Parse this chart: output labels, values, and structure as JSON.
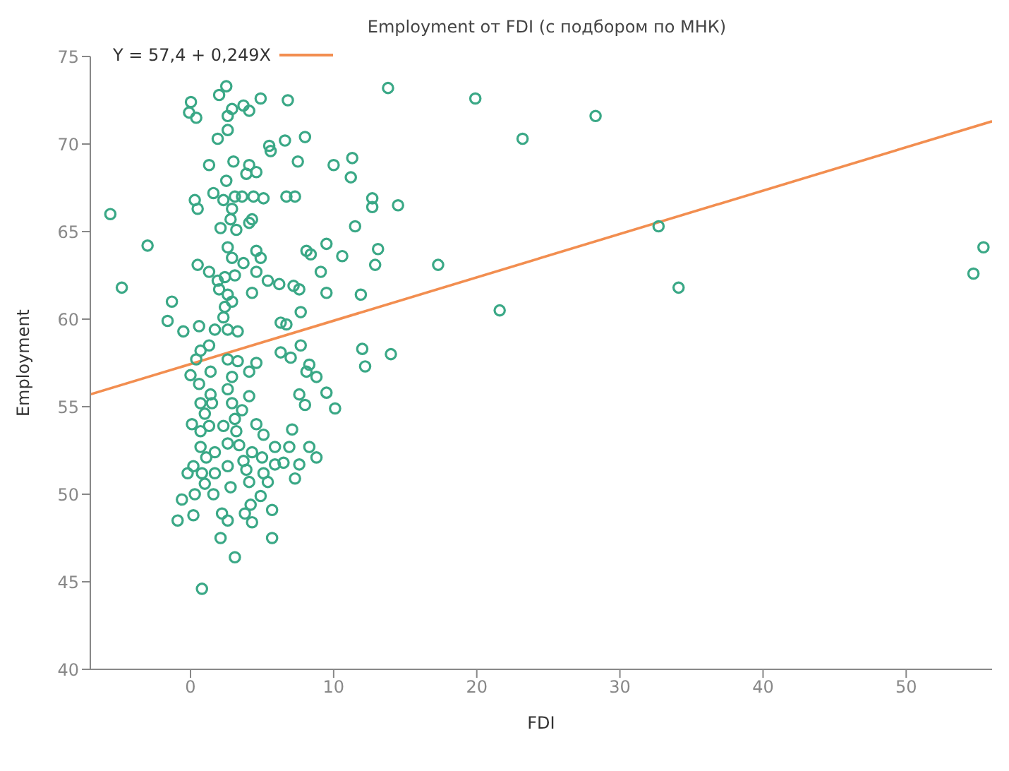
{
  "chart_data": {
    "type": "scatter",
    "title": "Employment от FDI (с подбором по МНК)",
    "xlabel": "FDI",
    "ylabel": "Employment",
    "xlim": [
      -7,
      56
    ],
    "xticks": [
      0,
      10,
      20,
      30,
      40,
      50
    ],
    "ylim": [
      40,
      75
    ],
    "yticks": [
      40,
      45,
      50,
      55,
      60,
      65,
      70,
      75
    ],
    "grid": false,
    "legend": "top left",
    "marker": "circle",
    "series": [
      {
        "color": "#3aa886",
        "x": [
          -5.6,
          -3.0,
          -4.8,
          -1.3,
          -1.6,
          -0.5,
          0.03,
          -0.1,
          0.4,
          2.0,
          2.5,
          2.6,
          2.9,
          3.7,
          4.1,
          4.9,
          6.8,
          2.6,
          1.9,
          5.5,
          5.6,
          6.6,
          8.0,
          1.3,
          3.0,
          4.1,
          3.9,
          4.6,
          7.5,
          10.0,
          11.3,
          11.2,
          2.5,
          1.6,
          0.3,
          0.5,
          2.3,
          3.1,
          3.6,
          4.4,
          5.1,
          6.7,
          7.3,
          2.9,
          2.8,
          2.1,
          3.2,
          4.3,
          4.1,
          11.5,
          2.6,
          2.9,
          4.6,
          4.9,
          8.1,
          8.4,
          9.5,
          10.6,
          0.5,
          1.3,
          1.9,
          2.4,
          3.1,
          3.7,
          4.6,
          5.4,
          6.2,
          7.2,
          9.1,
          2.0,
          2.6,
          2.4,
          2.9,
          4.3,
          7.6,
          9.5,
          11.9,
          7.7,
          2.3,
          0.6,
          1.7,
          2.6,
          3.3,
          6.3,
          6.7,
          0.7,
          1.3,
          0.4,
          0.0,
          1.4,
          2.6,
          3.3,
          4.6,
          4.1,
          2.9,
          6.3,
          7.0,
          7.7,
          8.1,
          8.3,
          8.8,
          12.0,
          12.2,
          0.6,
          1.4,
          0.7,
          1.0,
          1.5,
          2.6,
          2.9,
          3.6,
          4.1,
          7.6,
          8.0,
          9.5,
          10.1,
          0.1,
          1.3,
          0.7,
          2.3,
          3.1,
          3.2,
          4.6,
          5.1,
          7.1,
          0.7,
          1.7,
          2.6,
          3.4,
          4.3,
          5.9,
          6.9,
          8.3,
          8.8,
          1.1,
          3.7,
          5.0,
          5.9,
          6.5,
          7.6,
          -0.2,
          0.2,
          0.8,
          1.7,
          2.6,
          3.9,
          5.1,
          7.3,
          1.0,
          1.6,
          2.8,
          4.1,
          5.4,
          4.9,
          0.3,
          -0.6,
          -0.9,
          0.2,
          2.2,
          2.6,
          3.8,
          4.2,
          4.3,
          5.7,
          2.1,
          5.7,
          3.1,
          0.8,
          13.8,
          19.9,
          28.3,
          23.2,
          12.7,
          12.7,
          14.5,
          13.1,
          12.9,
          17.3,
          21.6,
          32.7,
          34.1,
          55.4,
          54.7,
          14.0
        ],
        "values": [
          66.0,
          64.2,
          61.8,
          61.0,
          59.9,
          59.3,
          72.4,
          71.8,
          71.5,
          72.8,
          73.3,
          71.6,
          72.0,
          72.2,
          71.9,
          72.6,
          72.5,
          70.8,
          70.3,
          69.9,
          69.6,
          70.2,
          70.4,
          68.8,
          69.0,
          68.8,
          68.3,
          68.4,
          69.0,
          68.8,
          69.2,
          68.1,
          67.9,
          67.2,
          66.8,
          66.3,
          66.8,
          67.0,
          67.0,
          67.0,
          66.9,
          67.0,
          67.0,
          66.3,
          65.7,
          65.2,
          65.1,
          65.7,
          65.5,
          65.3,
          64.1,
          63.5,
          63.9,
          63.5,
          63.9,
          63.7,
          64.3,
          63.6,
          63.1,
          62.7,
          62.2,
          62.4,
          62.5,
          63.2,
          62.7,
          62.2,
          62.0,
          61.9,
          62.7,
          61.7,
          61.4,
          60.7,
          61.0,
          61.5,
          61.7,
          61.5,
          61.4,
          60.4,
          60.1,
          59.6,
          59.4,
          59.4,
          59.3,
          59.8,
          59.7,
          58.2,
          58.5,
          57.7,
          56.8,
          57.0,
          57.7,
          57.6,
          57.5,
          57.0,
          56.7,
          58.1,
          57.8,
          58.5,
          57.0,
          57.4,
          56.7,
          58.3,
          57.3,
          56.3,
          55.7,
          55.2,
          54.6,
          55.2,
          56.0,
          55.2,
          54.8,
          55.6,
          55.7,
          55.1,
          55.8,
          54.9,
          54.0,
          53.9,
          53.6,
          53.9,
          54.3,
          53.6,
          54.0,
          53.4,
          53.7,
          52.7,
          52.4,
          52.9,
          52.8,
          52.4,
          52.7,
          52.7,
          52.7,
          52.1,
          52.1,
          51.9,
          52.1,
          51.7,
          51.8,
          51.7,
          51.2,
          51.6,
          51.2,
          51.2,
          51.6,
          51.4,
          51.2,
          50.9,
          50.6,
          50.0,
          50.4,
          50.7,
          50.7,
          49.9,
          50.0,
          49.7,
          48.5,
          48.8,
          48.9,
          48.5,
          48.9,
          49.4,
          48.4,
          49.1,
          47.5,
          47.5,
          46.4,
          44.6,
          73.2,
          72.6,
          71.6,
          70.3,
          66.9,
          66.4,
          66.5,
          64.0,
          63.1,
          63.1,
          60.5,
          65.3,
          61.8,
          64.1,
          62.6,
          58.0
        ]
      },
      {
        "type": "line",
        "name": "Y = 57,4 + 0,249X",
        "color": "#f28e50",
        "marker": "none",
        "line_style": "solid",
        "x": [
          -7,
          56
        ],
        "values": [
          55.7,
          71.3
        ]
      }
    ]
  }
}
